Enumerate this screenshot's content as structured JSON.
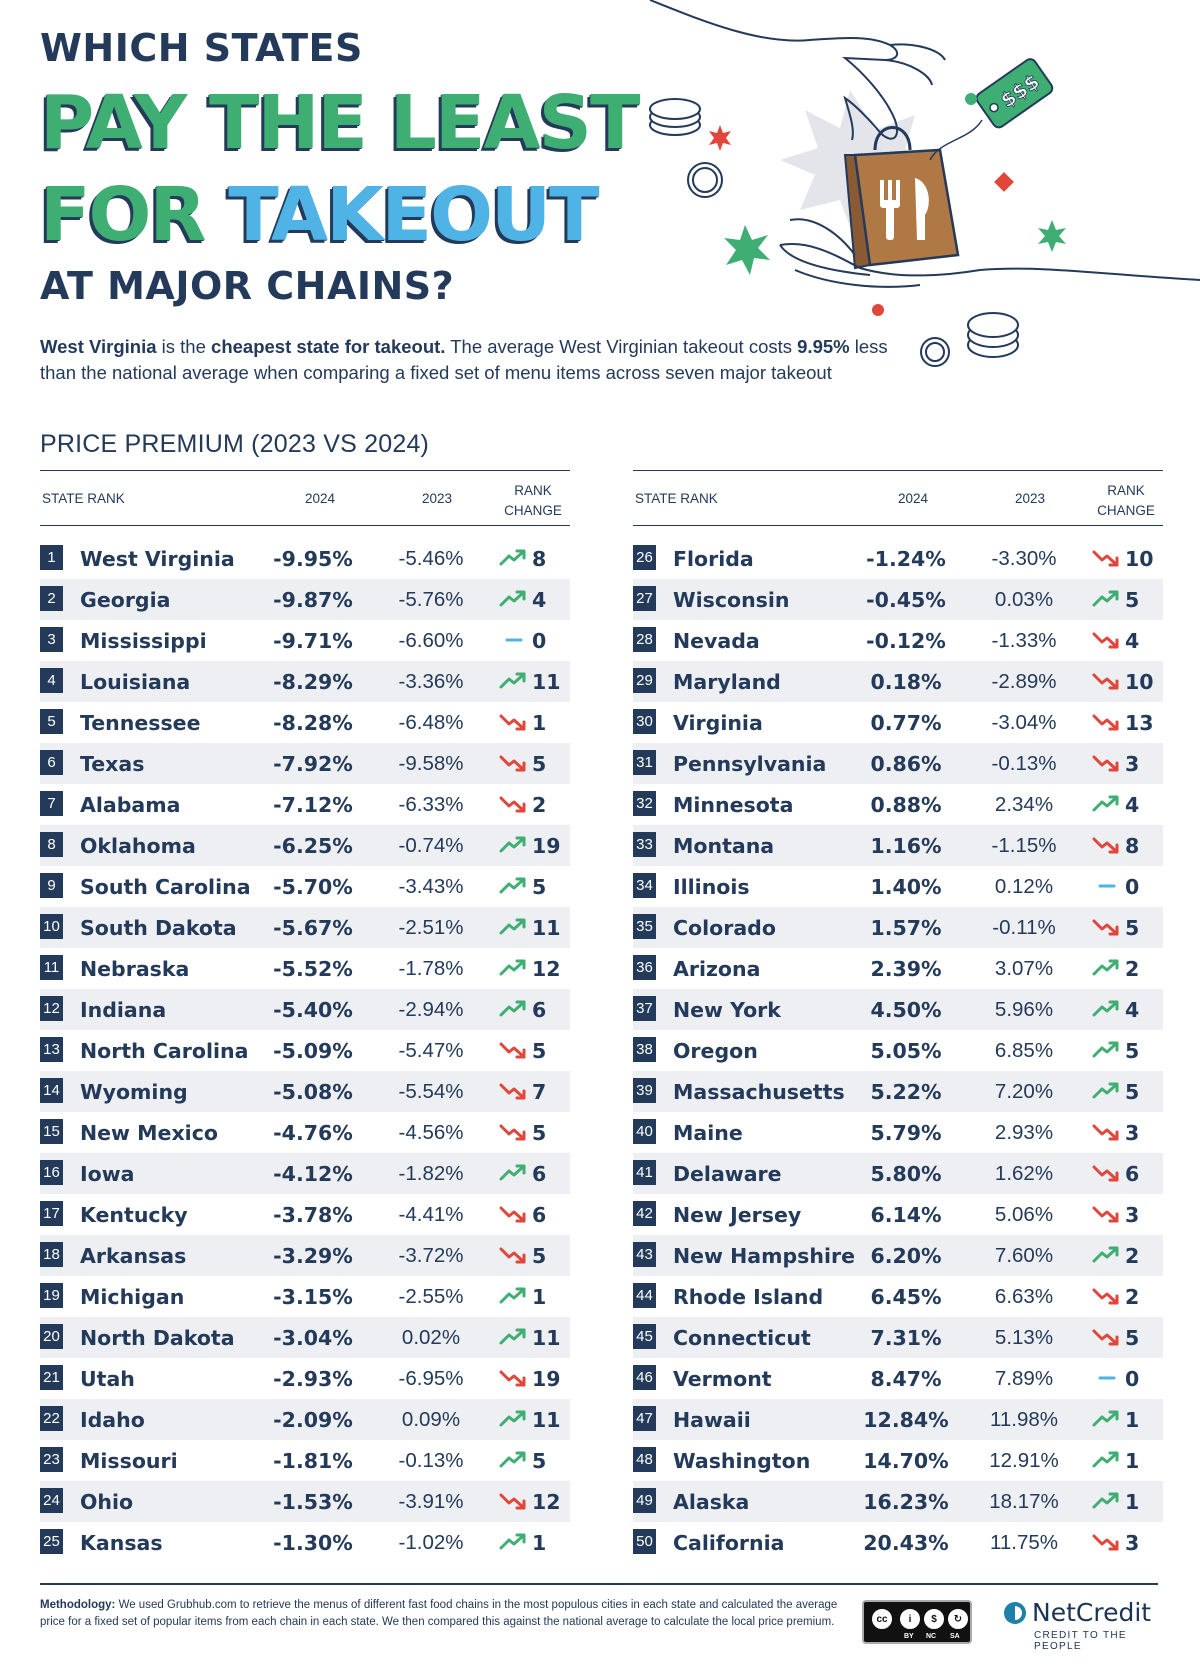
{
  "header": {
    "kicker": "WHICH STATES",
    "line1": "PAY THE LEAST",
    "line2_a": "FOR ",
    "line2_b": "TAKEOUT",
    "kicker2": "AT MAJOR CHAINS?",
    "intro_state": "West Virginia",
    "intro_is": " is the ",
    "intro_cheapest": "cheapest state for takeout.",
    "intro_rest_a": " The average West Virginian takeout costs ",
    "intro_pct": "9.95%",
    "intro_rest_b": " less than the national average when comparing a fixed set of menu items across seven major takeout",
    "price_tag_text": "$$$"
  },
  "section_title": "PRICE PREMIUM (2023 VS 2024)",
  "columns": {
    "rank": "STATE RANK",
    "y2024": "2024",
    "y2023": "2023",
    "change_line1": "RANK",
    "change_line2": "CHANGE"
  },
  "colors": {
    "navy": "#233a5a",
    "green": "#3fae72",
    "blue": "#4fb3e6",
    "up": "#3fae72",
    "down": "#e0473a",
    "flat": "#4fb3e6"
  },
  "rows": [
    {
      "rank": "1",
      "state": "West Virginia",
      "v2024": "-9.95%",
      "v2023": "-5.46%",
      "trend": "up",
      "change": "8"
    },
    {
      "rank": "2",
      "state": "Georgia",
      "v2024": "-9.87%",
      "v2023": "-5.76%",
      "trend": "up",
      "change": "4"
    },
    {
      "rank": "3",
      "state": "Mississippi",
      "v2024": "-9.71%",
      "v2023": "-6.60%",
      "trend": "flat",
      "change": "0"
    },
    {
      "rank": "4",
      "state": "Louisiana",
      "v2024": "-8.29%",
      "v2023": "-3.36%",
      "trend": "up",
      "change": "11"
    },
    {
      "rank": "5",
      "state": "Tennessee",
      "v2024": "-8.28%",
      "v2023": "-6.48%",
      "trend": "down",
      "change": "1"
    },
    {
      "rank": "6",
      "state": "Texas",
      "v2024": "-7.92%",
      "v2023": "-9.58%",
      "trend": "down",
      "change": "5"
    },
    {
      "rank": "7",
      "state": "Alabama",
      "v2024": "-7.12%",
      "v2023": "-6.33%",
      "trend": "down",
      "change": "2"
    },
    {
      "rank": "8",
      "state": "Oklahoma",
      "v2024": "-6.25%",
      "v2023": "-0.74%",
      "trend": "up",
      "change": "19"
    },
    {
      "rank": "9",
      "state": "South Carolina",
      "v2024": "-5.70%",
      "v2023": "-3.43%",
      "trend": "up",
      "change": "5"
    },
    {
      "rank": "10",
      "state": "South Dakota",
      "v2024": "-5.67%",
      "v2023": "-2.51%",
      "trend": "up",
      "change": "11"
    },
    {
      "rank": "11",
      "state": "Nebraska",
      "v2024": "-5.52%",
      "v2023": "-1.78%",
      "trend": "up",
      "change": "12"
    },
    {
      "rank": "12",
      "state": "Indiana",
      "v2024": "-5.40%",
      "v2023": "-2.94%",
      "trend": "up",
      "change": "6"
    },
    {
      "rank": "13",
      "state": "North Carolina",
      "v2024": "-5.09%",
      "v2023": "-5.47%",
      "trend": "down",
      "change": "5"
    },
    {
      "rank": "14",
      "state": "Wyoming",
      "v2024": "-5.08%",
      "v2023": "-5.54%",
      "trend": "down",
      "change": "7"
    },
    {
      "rank": "15",
      "state": "New Mexico",
      "v2024": "-4.76%",
      "v2023": "-4.56%",
      "trend": "down",
      "change": "5"
    },
    {
      "rank": "16",
      "state": "Iowa",
      "v2024": "-4.12%",
      "v2023": "-1.82%",
      "trend": "up",
      "change": "6"
    },
    {
      "rank": "17",
      "state": "Kentucky",
      "v2024": "-3.78%",
      "v2023": "-4.41%",
      "trend": "down",
      "change": "6"
    },
    {
      "rank": "18",
      "state": "Arkansas",
      "v2024": "-3.29%",
      "v2023": "-3.72%",
      "trend": "down",
      "change": "5"
    },
    {
      "rank": "19",
      "state": "Michigan",
      "v2024": "-3.15%",
      "v2023": "-2.55%",
      "trend": "up",
      "change": "1"
    },
    {
      "rank": "20",
      "state": "North Dakota",
      "v2024": "-3.04%",
      "v2023": "0.02%",
      "trend": "up",
      "change": "11"
    },
    {
      "rank": "21",
      "state": "Utah",
      "v2024": "-2.93%",
      "v2023": "-6.95%",
      "trend": "down",
      "change": "19"
    },
    {
      "rank": "22",
      "state": "Idaho",
      "v2024": "-2.09%",
      "v2023": "0.09%",
      "trend": "up",
      "change": "11"
    },
    {
      "rank": "23",
      "state": "Missouri",
      "v2024": "-1.81%",
      "v2023": "-0.13%",
      "trend": "up",
      "change": "5"
    },
    {
      "rank": "24",
      "state": "Ohio",
      "v2024": "-1.53%",
      "v2023": "-3.91%",
      "trend": "down",
      "change": "12"
    },
    {
      "rank": "25",
      "state": "Kansas",
      "v2024": "-1.30%",
      "v2023": "-1.02%",
      "trend": "up",
      "change": "1"
    },
    {
      "rank": "26",
      "state": "Florida",
      "v2024": "-1.24%",
      "v2023": "-3.30%",
      "trend": "down",
      "change": "10"
    },
    {
      "rank": "27",
      "state": "Wisconsin",
      "v2024": "-0.45%",
      "v2023": "0.03%",
      "trend": "up",
      "change": "5"
    },
    {
      "rank": "28",
      "state": "Nevada",
      "v2024": "-0.12%",
      "v2023": "-1.33%",
      "trend": "down",
      "change": "4"
    },
    {
      "rank": "29",
      "state": "Maryland",
      "v2024": "0.18%",
      "v2023": "-2.89%",
      "trend": "down",
      "change": "10"
    },
    {
      "rank": "30",
      "state": "Virginia",
      "v2024": "0.77%",
      "v2023": "-3.04%",
      "trend": "down",
      "change": "13"
    },
    {
      "rank": "31",
      "state": "Pennsylvania",
      "v2024": "0.86%",
      "v2023": "-0.13%",
      "trend": "down",
      "change": "3"
    },
    {
      "rank": "32",
      "state": "Minnesota",
      "v2024": "0.88%",
      "v2023": "2.34%",
      "trend": "up",
      "change": "4"
    },
    {
      "rank": "33",
      "state": "Montana",
      "v2024": "1.16%",
      "v2023": "-1.15%",
      "trend": "down",
      "change": "8"
    },
    {
      "rank": "34",
      "state": "Illinois",
      "v2024": "1.40%",
      "v2023": "0.12%",
      "trend": "flat",
      "change": "0"
    },
    {
      "rank": "35",
      "state": "Colorado",
      "v2024": "1.57%",
      "v2023": "-0.11%",
      "trend": "down",
      "change": "5"
    },
    {
      "rank": "36",
      "state": "Arizona",
      "v2024": "2.39%",
      "v2023": "3.07%",
      "trend": "up",
      "change": "2"
    },
    {
      "rank": "37",
      "state": "New York",
      "v2024": "4.50%",
      "v2023": "5.96%",
      "trend": "up",
      "change": "4"
    },
    {
      "rank": "38",
      "state": "Oregon",
      "v2024": "5.05%",
      "v2023": "6.85%",
      "trend": "up",
      "change": "5"
    },
    {
      "rank": "39",
      "state": "Massachusetts",
      "v2024": "5.22%",
      "v2023": "7.20%",
      "trend": "up",
      "change": "5"
    },
    {
      "rank": "40",
      "state": "Maine",
      "v2024": "5.79%",
      "v2023": "2.93%",
      "trend": "down",
      "change": "3"
    },
    {
      "rank": "41",
      "state": "Delaware",
      "v2024": "5.80%",
      "v2023": "1.62%",
      "trend": "down",
      "change": "6"
    },
    {
      "rank": "42",
      "state": "New Jersey",
      "v2024": "6.14%",
      "v2023": "5.06%",
      "trend": "down",
      "change": "3"
    },
    {
      "rank": "43",
      "state": "New Hampshire",
      "v2024": "6.20%",
      "v2023": "7.60%",
      "trend": "up",
      "change": "2"
    },
    {
      "rank": "44",
      "state": "Rhode Island",
      "v2024": "6.45%",
      "v2023": "6.63%",
      "trend": "down",
      "change": "2"
    },
    {
      "rank": "45",
      "state": "Connecticut",
      "v2024": "7.31%",
      "v2023": "5.13%",
      "trend": "down",
      "change": "5"
    },
    {
      "rank": "46",
      "state": "Vermont",
      "v2024": "8.47%",
      "v2023": "7.89%",
      "trend": "flat",
      "change": "0"
    },
    {
      "rank": "47",
      "state": "Hawaii",
      "v2024": "12.84%",
      "v2023": "11.98%",
      "trend": "up",
      "change": "1"
    },
    {
      "rank": "48",
      "state": "Washington",
      "v2024": "14.70%",
      "v2023": "12.91%",
      "trend": "up",
      "change": "1"
    },
    {
      "rank": "49",
      "state": "Alaska",
      "v2024": "16.23%",
      "v2023": "18.17%",
      "trend": "up",
      "change": "1"
    },
    {
      "rank": "50",
      "state": "California",
      "v2024": "20.43%",
      "v2023": "11.75%",
      "trend": "down",
      "change": "3"
    }
  ],
  "footer": {
    "method_label": "Methodology:",
    "method_text": " We used Grubhub.com to retrieve the menus of different fast food chains in the most populous cities in each state and calculated the average price for a fixed set of popular items from each chain in each state. We then compared this against the national average to calculate the local price premium.",
    "cc_labels": [
      "BY",
      "NC",
      "SA"
    ],
    "logo_name": "NetCredit",
    "logo_tagline": "CREDIT TO THE PEOPLE"
  }
}
